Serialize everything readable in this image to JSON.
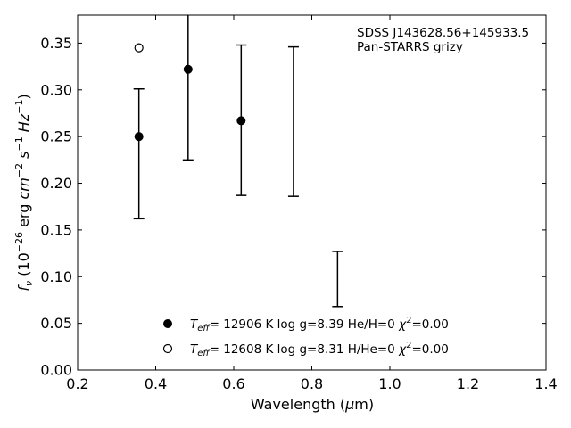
{
  "chart_data": {
    "type": "scatter",
    "xlabel": "Wavelength (μm)",
    "ylabel": "f_ν (10^-26 erg cm^-2 s^-1 Hz^-1)",
    "xlim": [
      0.2,
      1.4
    ],
    "ylim": [
      0.0,
      0.38
    ],
    "xticks": [
      "0.2",
      "0.4",
      "0.6",
      "0.8",
      "1.0",
      "1.2",
      "1.4"
    ],
    "yticks": [
      "0.00",
      "0.05",
      "0.10",
      "0.15",
      "0.20",
      "0.25",
      "0.30",
      "0.35"
    ],
    "grid": false,
    "annotation": [
      "SDSS J143628.56+145933.5",
      "Pan-STARRS grizy"
    ],
    "observed_errorbars": [
      {
        "x": 0.357,
        "low": 0.162,
        "high": 0.301
      },
      {
        "x": 0.483,
        "low": 0.225,
        "high": 0.4
      },
      {
        "x": 0.619,
        "low": 0.187,
        "high": 0.348
      },
      {
        "x": 0.753,
        "low": 0.186,
        "high": 0.346
      },
      {
        "x": 0.866,
        "low": 0.068,
        "high": 0.127
      }
    ],
    "series": [
      {
        "name": "T_eff= 12906 K  log g=8.39  He/H=0  χ²=0.00",
        "marker": "filled-circle",
        "points": [
          {
            "x": 0.357,
            "y": 0.25
          },
          {
            "x": 0.483,
            "y": 0.322
          },
          {
            "x": 0.619,
            "y": 0.267
          }
        ]
      },
      {
        "name": "T_eff= 12608 K  log g=8.31  H/He=0  χ²=0.00",
        "marker": "open-circle",
        "points": [
          {
            "x": 0.357,
            "y": 0.345
          }
        ]
      }
    ],
    "legend": [
      {
        "marker": "filled-circle",
        "prefix": "T",
        "sub": "eff",
        "rest": "= 12906 K  log g=8.39  He/H=0  ",
        "chi": "χ",
        "chi_exp": "2",
        "chi_val": "=0.00"
      },
      {
        "marker": "open-circle",
        "prefix": "T",
        "sub": "eff",
        "rest": "= 12608 K  log g=8.31  H/He=0  ",
        "chi": "χ",
        "chi_exp": "2",
        "chi_val": "=0.00"
      }
    ],
    "legend_position": "lower-center"
  }
}
